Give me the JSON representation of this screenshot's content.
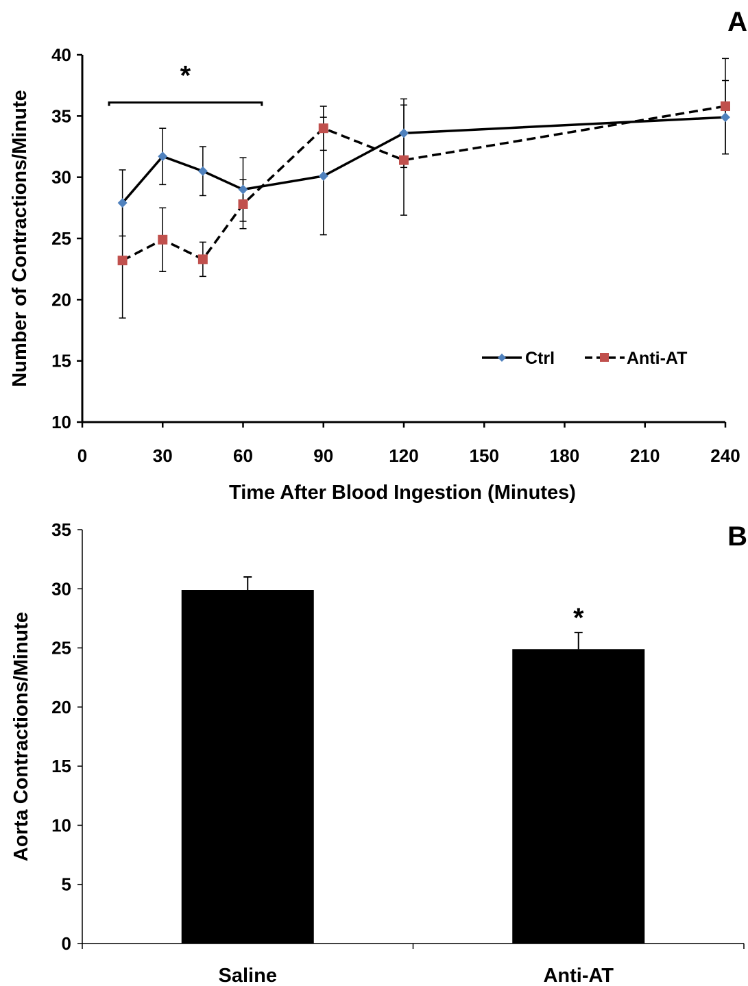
{
  "colors": {
    "ctrl": "#4F81BD",
    "anti_at": "#C0504D",
    "bar": "#000000",
    "axis": "#000000"
  },
  "chart_data": [
    {
      "panel_label": "A",
      "type": "line",
      "xlabel": "Time After Blood Ingestion (Minutes)",
      "ylabel": "Number of Contractions/Minute",
      "xlim": [
        0,
        240
      ],
      "ylim": [
        10,
        40
      ],
      "x_ticks": [
        "0",
        "30",
        "60",
        "90",
        "120",
        "150",
        "180",
        "210",
        "240"
      ],
      "y_ticks": [
        "10",
        "15",
        "20",
        "25",
        "30",
        "35",
        "40"
      ],
      "grid": false,
      "legend": "bottom-right",
      "series": [
        {
          "name": "Ctrl",
          "line": "solid",
          "marker": "diamond",
          "color": "#4F81BD",
          "x": [
            15,
            30,
            45,
            60,
            90,
            120,
            240
          ],
          "y": [
            27.9,
            31.7,
            30.5,
            29.0,
            30.1,
            33.6,
            34.9
          ],
          "error": [
            2.7,
            2.3,
            2.0,
            2.6,
            4.8,
            2.8,
            3.0
          ]
        },
        {
          "name": "Anti-AT",
          "line": "dashed",
          "marker": "square",
          "color": "#C0504D",
          "x": [
            15,
            30,
            45,
            60,
            90,
            120,
            240
          ],
          "y": [
            23.2,
            24.9,
            23.3,
            27.8,
            34.0,
            31.4,
            35.8
          ],
          "error": [
            4.7,
            2.6,
            1.4,
            2.0,
            1.8,
            4.5,
            3.9
          ]
        }
      ],
      "annotations": [
        {
          "text": "*",
          "bracket_x": [
            10,
            67
          ],
          "bracket_y": 36.1
        }
      ]
    },
    {
      "panel_label": "B",
      "type": "bar",
      "xlabel": "",
      "ylabel": "Aorta Contractions/Minute",
      "ylim": [
        0,
        35
      ],
      "y_ticks": [
        "0",
        "5",
        "10",
        "15",
        "20",
        "25",
        "30",
        "35"
      ],
      "categories": [
        "Saline",
        "Anti-AT"
      ],
      "values": [
        29.9,
        24.9
      ],
      "errors": [
        1.1,
        1.4
      ],
      "grid": false,
      "annotations": [
        {
          "text": "*",
          "category": "Anti-AT"
        }
      ]
    }
  ]
}
